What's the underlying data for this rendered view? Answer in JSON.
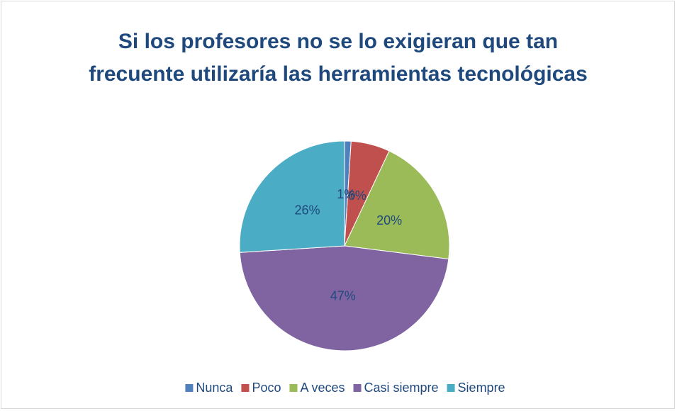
{
  "chart_data": {
    "type": "pie",
    "title": "Si los profesores no se lo exigieran que tan frecuente utilizaría las herramientas tecnológicas",
    "categories": [
      "Nunca",
      "Poco",
      "A veces",
      "Casi siempre",
      "Siempre"
    ],
    "values": [
      1,
      6,
      20,
      47,
      26
    ],
    "value_labels": [
      "1%",
      "6%",
      "20%",
      "47%",
      "26%"
    ],
    "colors": [
      "#4f81bd",
      "#c0504d",
      "#9bbb59",
      "#8064a2",
      "#4bacc6"
    ],
    "legend": "bottom"
  }
}
